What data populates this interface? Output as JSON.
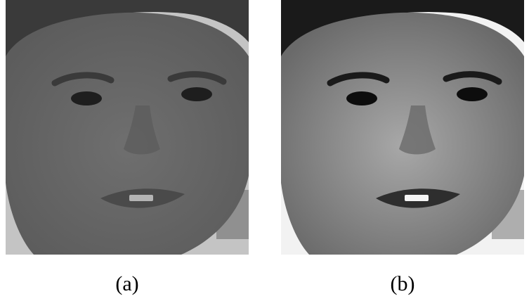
{
  "figure": {
    "panels": [
      {
        "label": "(a)",
        "palette": {
          "background": "#c4c4c4",
          "skin": "#6f6f6f",
          "skin_shadow": "#5c5c5c",
          "hair": "#3a3a3a",
          "eye": "#1e1e1e",
          "lips": "#4a4a4a",
          "teeth": "#b4b4b4"
        }
      },
      {
        "label": "(b)",
        "palette": {
          "background": "#f2f2f2",
          "skin": "#a8a8a8",
          "skin_shadow": "#6a6a6a",
          "hair": "#1a1a1a",
          "eye": "#0d0d0d",
          "lips": "#2e2e2e",
          "teeth": "#f4f4f4"
        }
      }
    ]
  }
}
